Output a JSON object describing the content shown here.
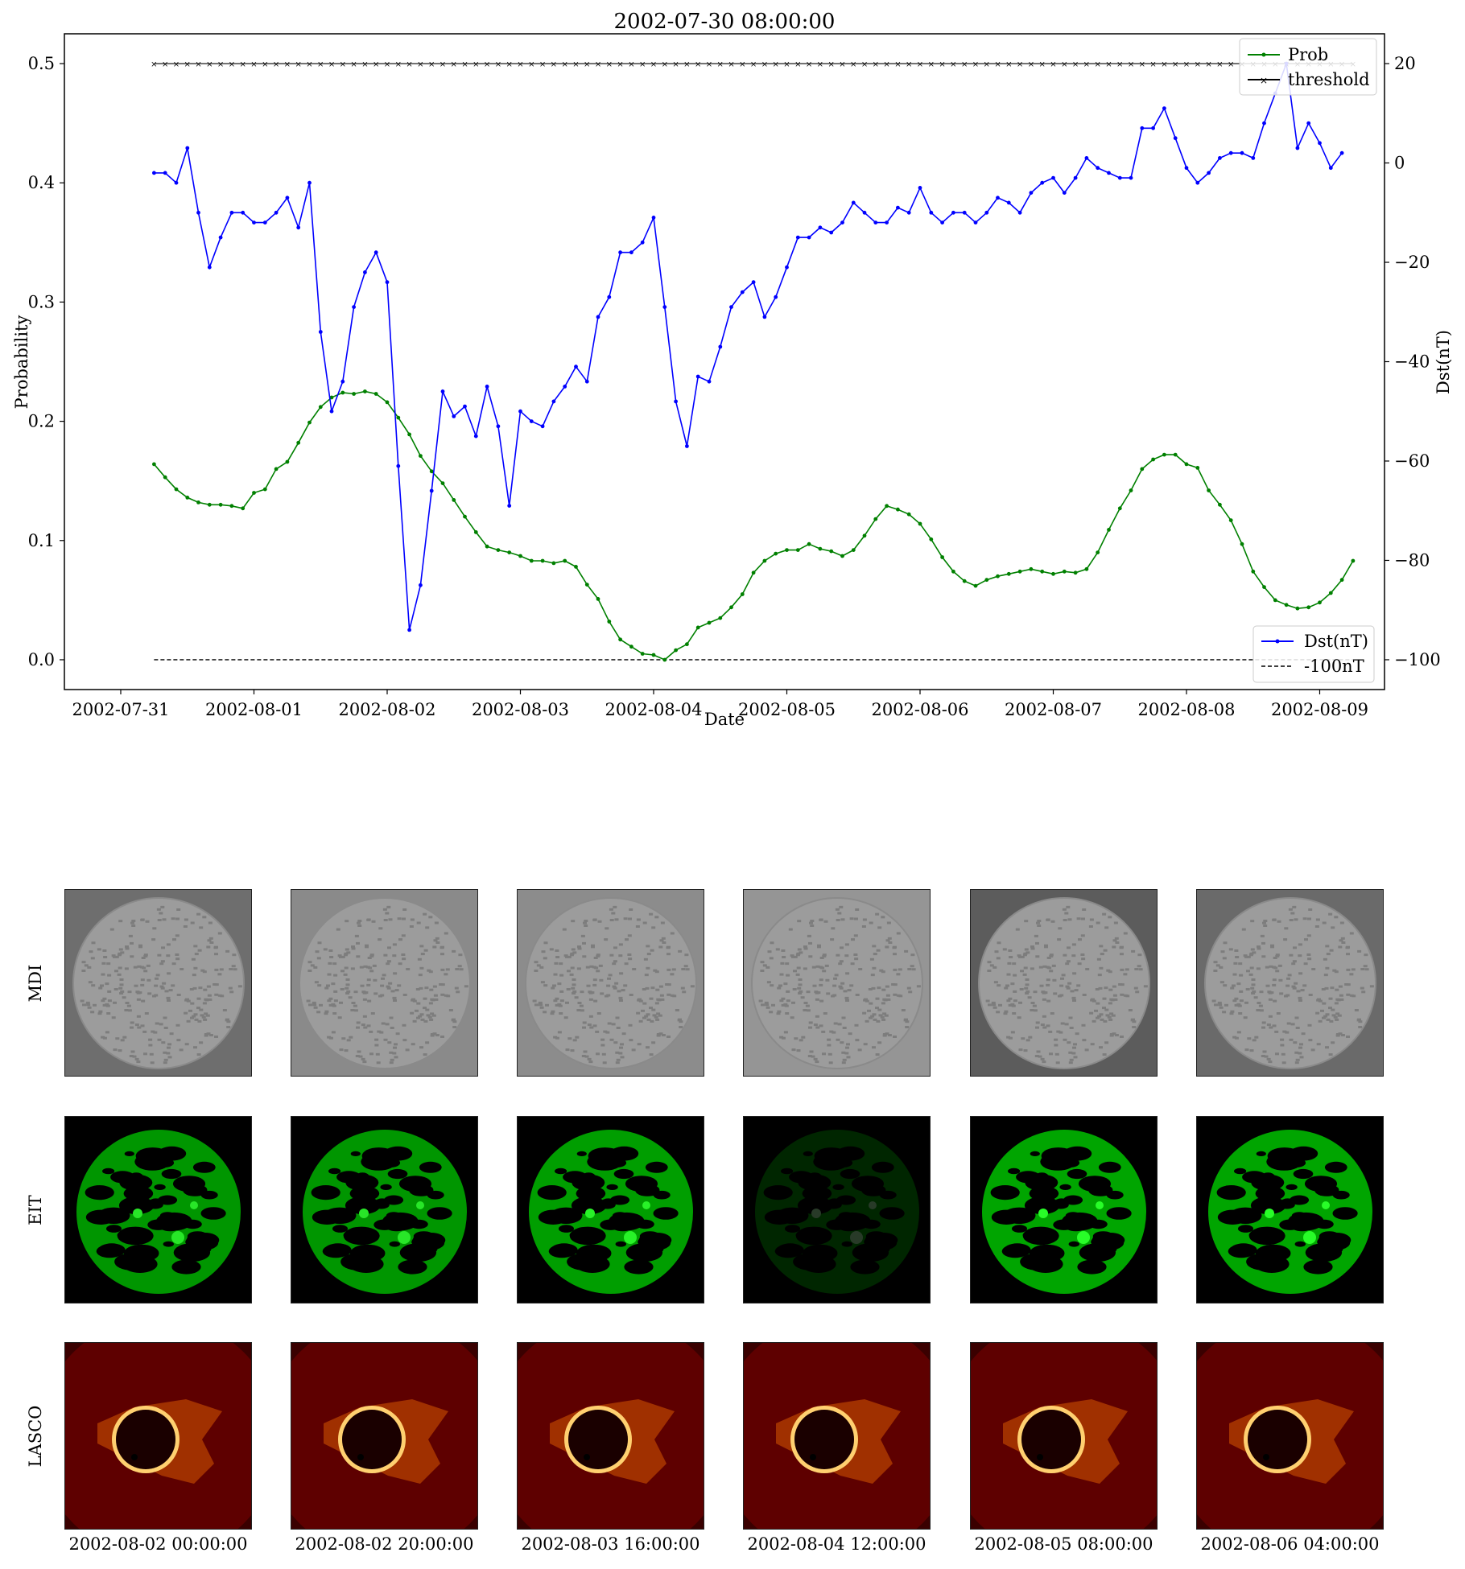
{
  "chart_data": {
    "type": "line",
    "title": "2002-07-30 08:00:00",
    "xlabel": "Date",
    "ylabel_left": "Probability",
    "ylabel_right": "Dst(nT)",
    "x_tick_labels": [
      "2002-07-31",
      "2002-08-01",
      "2002-08-02",
      "2002-08-03",
      "2002-08-04",
      "2002-08-05",
      "2002-08-06",
      "2002-08-07",
      "2002-08-08",
      "2002-08-09"
    ],
    "x_start": "2002-07-31T06:00",
    "x_step_hours": 2,
    "yleft_ticks": [
      "0.0",
      "0.1",
      "0.2",
      "0.3",
      "0.4",
      "0.5"
    ],
    "yleft_lim": [
      -0.025,
      0.525
    ],
    "yright_ticks": [
      "−100",
      "−80",
      "−60",
      "−40",
      "−20",
      "0",
      "20"
    ],
    "yright_lim": [
      -106,
      26
    ],
    "legend_top": [
      "Prob",
      "threshold"
    ],
    "legend_bottom": [
      "Dst(nT)",
      "-100nT"
    ],
    "legend_placement": [
      "top-right",
      "bottom-right"
    ],
    "series": [
      {
        "name": "Prob",
        "axis": "left",
        "color": "#008000",
        "values": [
          0.164,
          0.153,
          0.143,
          0.136,
          0.132,
          0.13,
          0.13,
          0.129,
          0.127,
          0.14,
          0.143,
          0.16,
          0.166,
          0.182,
          0.199,
          0.212,
          0.22,
          0.224,
          0.223,
          0.225,
          0.223,
          0.216,
          0.203,
          0.189,
          0.171,
          0.158,
          0.148,
          0.134,
          0.12,
          0.107,
          0.095,
          0.092,
          0.09,
          0.087,
          0.083,
          0.083,
          0.081,
          0.083,
          0.078,
          0.063,
          0.051,
          0.032,
          0.017,
          0.011,
          0.005,
          0.004,
          0.0,
          0.008,
          0.013,
          0.027,
          0.031,
          0.035,
          0.044,
          0.055,
          0.073,
          0.083,
          0.089,
          0.092,
          0.092,
          0.097,
          0.093,
          0.091,
          0.087,
          0.092,
          0.104,
          0.118,
          0.129,
          0.126,
          0.122,
          0.114,
          0.101,
          0.086,
          0.074,
          0.066,
          0.062,
          0.067,
          0.07,
          0.072,
          0.074,
          0.076,
          0.074,
          0.072,
          0.074,
          0.073,
          0.076,
          0.09,
          0.109,
          0.127,
          0.142,
          0.16,
          0.168,
          0.172,
          0.172,
          0.164,
          0.161,
          0.142,
          0.13,
          0.117,
          0.097,
          0.074,
          0.061,
          0.05,
          0.046,
          0.043,
          0.044,
          0.048,
          0.056,
          0.067,
          0.083
        ]
      },
      {
        "name": "Dst(nT)",
        "axis": "right",
        "color": "#0000ff",
        "values": [
          -2,
          -2,
          -4,
          3,
          -10,
          -21,
          -15,
          -10,
          -10,
          -12,
          -12,
          -10,
          -7,
          -13,
          -4,
          -34,
          -50,
          -44,
          -29,
          -22,
          -18,
          -24,
          -61,
          -94,
          -85,
          -66,
          -46,
          -51,
          -49,
          -55,
          -45,
          -53,
          -69,
          -50,
          -52,
          -53,
          -48,
          -45,
          -41,
          -44,
          -31,
          -27,
          -18,
          -18,
          -16,
          -11,
          -29,
          -48,
          -57,
          -43,
          -44,
          -37,
          -29,
          -26,
          -24,
          -31,
          -27,
          -21,
          -15,
          -15,
          -13,
          -14,
          -12,
          -8,
          -10,
          -12,
          -12,
          -9,
          -10,
          -5,
          -10,
          -12,
          -10,
          -10,
          -12,
          -10,
          -7,
          -8,
          -10,
          -6,
          -4,
          -3,
          -6,
          -3,
          1,
          -1,
          -2,
          -3,
          -3,
          7,
          7,
          11,
          5,
          -1,
          -4,
          -2,
          1,
          2,
          2,
          1,
          8,
          14,
          20,
          3,
          8,
          4,
          -1,
          2
        ]
      },
      {
        "name": "threshold",
        "axis": "left",
        "color": "#000000",
        "constant": 0.5
      },
      {
        "name": "-100nT",
        "axis": "right",
        "color": "#000000",
        "constant": -100
      }
    ]
  },
  "panels": {
    "row_labels": [
      "MDI",
      "EIT",
      "LASCO"
    ],
    "dates": [
      "2002-08-02 00:00:00",
      "2002-08-02 20:00:00",
      "2002-08-03 16:00:00",
      "2002-08-04 12:00:00",
      "2002-08-05 08:00:00",
      "2002-08-06 04:00:00"
    ],
    "mdi_backgrounds": [
      "#6e6e6e",
      "#8a8a8a",
      "#8c8c8c",
      "#959595",
      "#5c5c5c",
      "#6a6a6a"
    ],
    "eit_brightness": [
      1.0,
      1.0,
      1.05,
      0.25,
      1.1,
      1.1
    ]
  }
}
